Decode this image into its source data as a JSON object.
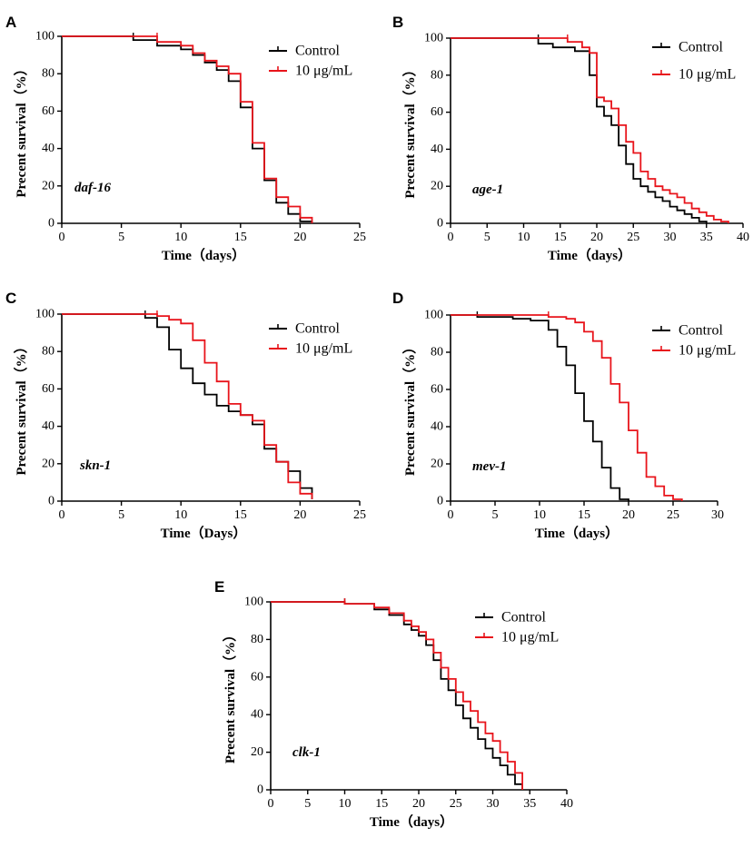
{
  "chart_data": [
    {
      "panel": "A",
      "type": "line",
      "gene": "daf-16",
      "xlabel": "Time（days）",
      "ylabel": "Precent survival（%）",
      "xlim": [
        0,
        25
      ],
      "ylim": [
        0,
        100
      ],
      "xticks": [
        0,
        5,
        10,
        15,
        20,
        25
      ],
      "yticks": [
        0,
        20,
        40,
        60,
        80,
        100
      ],
      "legend": "top-right",
      "series": [
        {
          "name": "Control",
          "color": "#000000",
          "x": [
            0,
            6,
            8,
            10,
            11,
            12,
            13,
            14,
            15,
            16,
            17,
            18,
            19,
            20,
            21
          ],
          "y": [
            100,
            98,
            95,
            93,
            90,
            86,
            82,
            76,
            62,
            40,
            23,
            11,
            5,
            1,
            0
          ]
        },
        {
          "name": "10 μg/mL",
          "color": "#e8141b",
          "x": [
            0,
            8,
            10,
            11,
            12,
            13,
            14,
            15,
            16,
            17,
            18,
            19,
            20,
            21
          ],
          "y": [
            100,
            97,
            95,
            91,
            87,
            84,
            80,
            65,
            43,
            24,
            14,
            9,
            3,
            0
          ]
        }
      ]
    },
    {
      "panel": "B",
      "type": "line",
      "gene": "age-1",
      "xlabel": "Time（days）",
      "ylabel": "Precent survival（%）",
      "xlim": [
        0,
        40
      ],
      "ylim": [
        0,
        100
      ],
      "xticks": [
        0,
        5,
        10,
        15,
        20,
        25,
        30,
        35,
        40
      ],
      "yticks": [
        0,
        20,
        40,
        60,
        80,
        100
      ],
      "legend": "top-right",
      "series": [
        {
          "name": "Control",
          "color": "#000000",
          "x": [
            0,
            12,
            14,
            17,
            19,
            20,
            21,
            22,
            23,
            24,
            25,
            26,
            27,
            28,
            29,
            30,
            31,
            32,
            33,
            34,
            35
          ],
          "y": [
            100,
            97,
            95,
            93,
            80,
            63,
            58,
            53,
            42,
            32,
            24,
            20,
            17,
            14,
            12,
            9,
            7,
            5,
            3,
            1,
            0
          ]
        },
        {
          "name": "10 μg/mL",
          "color": "#e8141b",
          "x": [
            0,
            16,
            18,
            19,
            20,
            21,
            22,
            23,
            24,
            25,
            26,
            27,
            28,
            29,
            30,
            31,
            32,
            33,
            34,
            35,
            36,
            37,
            38
          ],
          "y": [
            100,
            98,
            95,
            92,
            68,
            66,
            62,
            53,
            44,
            38,
            28,
            24,
            20,
            18,
            16,
            14,
            11,
            8,
            6,
            4,
            2,
            1,
            0
          ]
        }
      ]
    },
    {
      "panel": "C",
      "type": "line",
      "gene": "skn-1",
      "xlabel": "Time（Days）",
      "ylabel": "Precent survival（%）",
      "xlim": [
        0,
        25
      ],
      "ylim": [
        0,
        100
      ],
      "xticks": [
        0,
        5,
        10,
        15,
        20,
        25
      ],
      "yticks": [
        0,
        20,
        40,
        60,
        80,
        100
      ],
      "legend": "top-right",
      "series": [
        {
          "name": "Control",
          "color": "#000000",
          "x": [
            0,
            7,
            8,
            9,
            10,
            11,
            12,
            13,
            14,
            15,
            16,
            17,
            18,
            19,
            20,
            21
          ],
          "y": [
            100,
            98,
            93,
            81,
            71,
            63,
            57,
            51,
            48,
            46,
            41,
            28,
            21,
            16,
            7,
            1
          ]
        },
        {
          "name": "10 μg/mL",
          "color": "#e8141b",
          "x": [
            0,
            8,
            9,
            10,
            11,
            12,
            13,
            14,
            15,
            16,
            17,
            18,
            19,
            20,
            21
          ],
          "y": [
            100,
            99,
            97,
            95,
            86,
            74,
            64,
            52,
            46,
            43,
            30,
            21,
            10,
            4,
            1
          ]
        }
      ]
    },
    {
      "panel": "D",
      "type": "line",
      "gene": "mev-1",
      "xlabel": "Time（days）",
      "ylabel": "Precent survival（%）",
      "xlim": [
        0,
        30
      ],
      "ylim": [
        0,
        100
      ],
      "xticks": [
        0,
        5,
        10,
        15,
        20,
        25,
        30
      ],
      "yticks": [
        0,
        20,
        40,
        60,
        80,
        100
      ],
      "legend": "top-right",
      "series": [
        {
          "name": "Control",
          "color": "#000000",
          "x": [
            0,
            3,
            7,
            9,
            11,
            12,
            13,
            14,
            15,
            16,
            17,
            18,
            19,
            20
          ],
          "y": [
            100,
            99,
            98,
            97,
            92,
            83,
            73,
            58,
            43,
            32,
            18,
            7,
            1,
            0
          ]
        },
        {
          "name": "10 μg/mL",
          "color": "#e8141b",
          "x": [
            0,
            11,
            13,
            14,
            15,
            16,
            17,
            18,
            19,
            20,
            21,
            22,
            23,
            24,
            25,
            26
          ],
          "y": [
            100,
            99,
            98,
            96,
            91,
            86,
            77,
            63,
            53,
            38,
            26,
            13,
            8,
            3,
            1,
            0
          ]
        }
      ]
    },
    {
      "panel": "E",
      "type": "line",
      "gene": "clk-1",
      "xlabel": "Time（days）",
      "ylabel": "Precent survival（%）",
      "xlim": [
        0,
        40
      ],
      "ylim": [
        0,
        100
      ],
      "xticks": [
        0,
        5,
        10,
        15,
        20,
        25,
        30,
        35,
        40
      ],
      "yticks": [
        0,
        20,
        40,
        60,
        80,
        100
      ],
      "legend": "top-right",
      "series": [
        {
          "name": "Control",
          "color": "#000000",
          "x": [
            0,
            10,
            14,
            16,
            18,
            19,
            20,
            21,
            22,
            23,
            24,
            25,
            26,
            27,
            28,
            29,
            30,
            31,
            32,
            33,
            34
          ],
          "y": [
            100,
            99,
            96,
            93,
            88,
            85,
            82,
            77,
            69,
            59,
            53,
            45,
            38,
            33,
            27,
            22,
            17,
            13,
            8,
            3,
            0
          ]
        },
        {
          "name": "10 μg/mL",
          "color": "#e8141b",
          "x": [
            0,
            10,
            14,
            16,
            18,
            19,
            20,
            21,
            22,
            23,
            24,
            25,
            26,
            27,
            28,
            29,
            30,
            31,
            32,
            33,
            34
          ],
          "y": [
            100,
            99,
            97,
            94,
            90,
            87,
            84,
            80,
            73,
            65,
            59,
            52,
            47,
            42,
            36,
            30,
            26,
            20,
            15,
            9,
            0
          ]
        }
      ]
    }
  ]
}
